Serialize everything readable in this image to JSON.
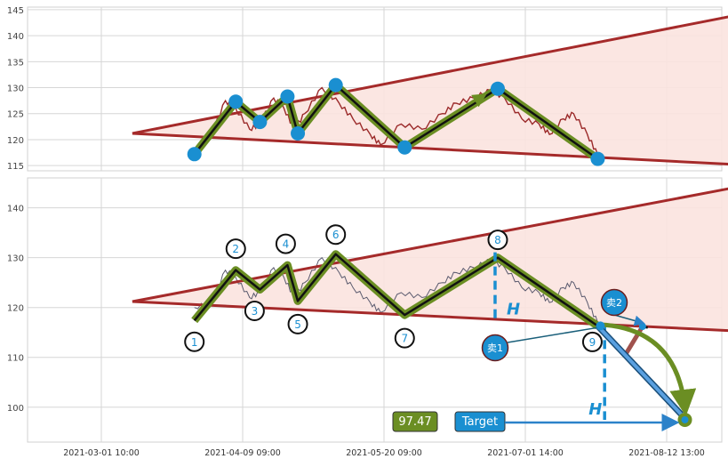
{
  "chart_data": [
    {
      "type": "line",
      "panel": "top",
      "title": "",
      "xlabel": "",
      "ylabel": "",
      "ylim": [
        114,
        145.5
      ],
      "yticks": [
        115,
        120,
        125,
        130,
        135,
        140,
        145
      ],
      "grid": true,
      "series": [
        {
          "style": "trend-upper-line",
          "color": "#a52a2a",
          "x": [
            "2021-03-10",
            "2021-09-01"
          ],
          "y": [
            121.2,
            143.9
          ]
        },
        {
          "style": "trend-lower-line",
          "color": "#a52a2a",
          "x": [
            "2021-03-10",
            "2021-09-01"
          ],
          "y": [
            121.2,
            115.2
          ]
        },
        {
          "style": "price-line",
          "color": "#9b2a2a",
          "x": [
            "2021-03-28",
            "2021-04-02",
            "2021-04-06",
            "2021-04-09",
            "2021-04-13",
            "2021-04-16",
            "2021-04-20",
            "2021-04-23",
            "2021-04-26",
            "2021-04-29",
            "2021-05-04",
            "2021-05-09",
            "2021-05-13",
            "2021-05-18",
            "2021-05-21",
            "2021-05-27",
            "2021-06-02",
            "2021-06-08",
            "2021-06-12",
            "2021-06-17",
            "2021-06-22",
            "2021-06-26",
            "2021-07-01",
            "2021-07-06",
            "2021-07-09",
            "2021-07-13",
            "2021-07-16",
            "2021-07-20",
            "2021-07-23"
          ],
          "y": [
            118,
            121,
            127.5,
            126,
            122,
            123,
            128,
            126,
            122,
            125,
            130,
            127,
            124,
            121,
            119,
            123,
            122,
            125,
            127,
            128,
            129.5,
            128,
            124,
            123,
            121,
            124,
            125,
            121,
            117
          ]
        },
        {
          "style": "wave-line",
          "color": "#6b8e23",
          "x": [
            "2021-03-28",
            "2021-04-09",
            "2021-04-16",
            "2021-04-24",
            "2021-04-27",
            "2021-05-08",
            "2021-05-28",
            "2021-06-24",
            "2021-07-23"
          ],
          "y": [
            117.2,
            127.3,
            123.4,
            128.3,
            121.2,
            130.5,
            118.5,
            129.8,
            116.3
          ]
        }
      ],
      "annotations": [
        {
          "type": "arrow",
          "color": "#6b8e23",
          "x": [
            "2021-05-28",
            "2021-06-20"
          ],
          "y": [
            119,
            128.5
          ]
        }
      ]
    },
    {
      "type": "line",
      "panel": "bottom",
      "title": "",
      "xlabel": "",
      "ylabel": "",
      "ylim": [
        93,
        146
      ],
      "yticks": [
        100,
        110,
        120,
        130,
        140
      ],
      "x_tick_labels": [
        "2021-03-01 10:00",
        "2021-04-09 09:00",
        "2021-05-20 09:00",
        "2021-07-01 14:00",
        "2021-08-12 13:00"
      ],
      "grid": true,
      "series": [
        {
          "style": "trend-upper-line",
          "color": "#a52a2a",
          "x": [
            "2021-03-10",
            "2021-09-01"
          ],
          "y": [
            121.2,
            144.1
          ]
        },
        {
          "style": "trend-lower-line",
          "color": "#a52a2a",
          "x": [
            "2021-03-10",
            "2021-09-01"
          ],
          "y": [
            121.2,
            115.3
          ]
        },
        {
          "style": "price-line",
          "color": "#5a5a6e",
          "x": [
            "2021-03-28",
            "2021-04-02",
            "2021-04-06",
            "2021-04-09",
            "2021-04-13",
            "2021-04-16",
            "2021-04-20",
            "2021-04-23",
            "2021-04-26",
            "2021-04-29",
            "2021-05-04",
            "2021-05-09",
            "2021-05-13",
            "2021-05-18",
            "2021-05-21",
            "2021-05-27",
            "2021-06-02",
            "2021-06-08",
            "2021-06-12",
            "2021-06-17",
            "2021-06-22",
            "2021-06-26",
            "2021-07-01",
            "2021-07-06",
            "2021-07-09",
            "2021-07-13",
            "2021-07-16",
            "2021-07-20",
            "2021-07-23"
          ],
          "y": [
            120,
            121,
            127.5,
            126,
            122,
            123,
            128,
            126,
            122,
            125,
            130,
            127,
            124,
            121,
            119,
            123,
            122,
            125,
            127,
            128,
            129.5,
            128,
            124,
            123,
            121,
            124,
            125,
            121,
            117
          ]
        },
        {
          "style": "wave-line",
          "color": "#6b8e23",
          "x": [
            "2021-03-28",
            "2021-04-09",
            "2021-04-16",
            "2021-04-24",
            "2021-04-27",
            "2021-05-08",
            "2021-05-28",
            "2021-06-24",
            "2021-07-23"
          ],
          "y": [
            117.4,
            127.5,
            123.6,
            128.5,
            121.3,
            130.7,
            118.5,
            130,
            116.3
          ]
        },
        {
          "style": "projection-line",
          "color": "#a0524d",
          "x": [
            "2021-07-23",
            "2021-07-31",
            "2021-08-05"
          ],
          "y": [
            116.3,
            110.5,
            116.2
          ]
        }
      ],
      "wave_labels": [
        "1",
        "2",
        "3",
        "4",
        "5",
        "6",
        "7",
        "8",
        "9"
      ],
      "h_label": "H",
      "sell_labels": [
        "卖1",
        "卖2"
      ],
      "target": {
        "value_label": "97.47",
        "label": "Target",
        "value": 97.47
      },
      "colors": {
        "wave": "#6b8e23",
        "trend": "#a52a2a",
        "fill": "#fbe3df",
        "accent": "#1a8fd1",
        "label_box": "#6b8e23",
        "target_box": "#1a8fd1"
      }
    }
  ]
}
